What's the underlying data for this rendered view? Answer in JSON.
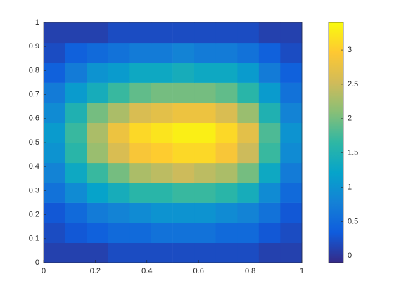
{
  "chart_data": {
    "type": "heatmap",
    "x": [
      0.042,
      0.125,
      0.208,
      0.292,
      0.375,
      0.458,
      0.542,
      0.625,
      0.708,
      0.792,
      0.875,
      0.958
    ],
    "y": [
      0.042,
      0.125,
      0.208,
      0.292,
      0.375,
      0.458,
      0.542,
      0.625,
      0.708,
      0.792,
      0.875,
      0.958
    ],
    "values": [
      [
        0.1,
        0.1,
        0.1,
        0.2,
        0.2,
        0.2,
        0.2,
        0.2,
        0.2,
        0.2,
        0.1,
        0.1
      ],
      [
        0.2,
        0.3,
        0.4,
        0.5,
        0.5,
        0.6,
        0.6,
        0.6,
        0.5,
        0.5,
        0.3,
        0.2
      ],
      [
        0.3,
        0.5,
        0.7,
        0.8,
        0.9,
        1.0,
        1.0,
        1.0,
        0.9,
        0.8,
        0.6,
        0.3
      ],
      [
        0.6,
        0.9,
        1.2,
        1.4,
        1.6,
        1.6,
        1.7,
        1.7,
        1.6,
        1.4,
        0.9,
        0.5
      ],
      [
        0.8,
        1.3,
        1.7,
        2.0,
        2.3,
        2.4,
        2.5,
        2.4,
        2.3,
        2.0,
        1.3,
        0.7
      ],
      [
        1.0,
        1.6,
        2.2,
        2.6,
        2.9,
        3.0,
        3.1,
        3.1,
        2.9,
        2.5,
        1.7,
        0.9
      ],
      [
        1.1,
        1.7,
        2.3,
        2.8,
        3.1,
        3.2,
        3.3,
        3.3,
        3.1,
        2.7,
        1.8,
        1.0
      ],
      [
        0.9,
        1.5,
        2.0,
        2.3,
        2.6,
        2.7,
        2.8,
        2.8,
        2.6,
        2.2,
        1.5,
        0.8
      ],
      [
        0.7,
        1.1,
        1.4,
        1.7,
        1.9,
        2.0,
        2.0,
        2.0,
        1.9,
        1.6,
        1.1,
        0.6
      ],
      [
        0.4,
        0.7,
        1.0,
        1.1,
        1.3,
        1.3,
        1.4,
        1.3,
        1.3,
        1.1,
        0.7,
        0.4
      ],
      [
        0.2,
        0.4,
        0.5,
        0.6,
        0.7,
        0.7,
        0.8,
        0.7,
        0.7,
        0.6,
        0.4,
        0.2
      ],
      [
        0.1,
        0.1,
        0.1,
        0.2,
        0.2,
        0.2,
        0.2,
        0.2,
        0.2,
        0.2,
        0.1,
        0.1
      ]
    ],
    "xlim": [
      0,
      1
    ],
    "xticks": [
      0,
      0.2,
      0.4,
      0.6,
      0.8,
      1
    ],
    "ylim": [
      0,
      1
    ],
    "yticks": [
      0,
      0.1,
      0.2,
      0.3,
      0.4,
      0.5,
      0.6,
      0.7,
      0.8,
      0.9,
      1
    ],
    "clim": [
      -0.1,
      3.4
    ],
    "colorbar_ticks": [
      0,
      0.5,
      1,
      1.5,
      2,
      2.5,
      3
    ],
    "colormap": [
      "#352a87",
      "#0f5cdd",
      "#1481d6",
      "#06a4ca",
      "#2eb7a4",
      "#87bf77",
      "#d1bb59",
      "#fec832",
      "#f9fb0e"
    ]
  }
}
